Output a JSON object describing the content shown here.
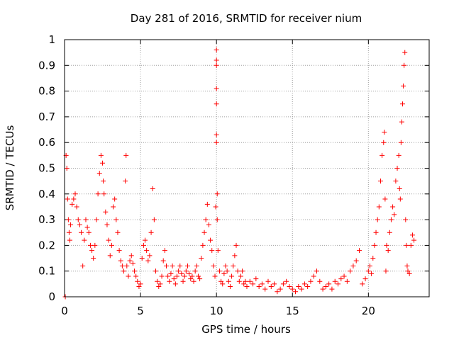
{
  "chart_data": {
    "type": "scatter",
    "title": "Day 281 of 2016, SRMTID for receiver nium",
    "xlabel": "GPS time / hours",
    "ylabel": "SRMTID / TECUs",
    "xlim": [
      0,
      24
    ],
    "ylim": [
      0,
      1
    ],
    "x_ticks": [
      0,
      5,
      10,
      15,
      20
    ],
    "x_tick_labels": [
      "0",
      "5",
      "10",
      "15",
      "20"
    ],
    "y_ticks": [
      0,
      0.1,
      0.2,
      0.3,
      0.4,
      0.5,
      0.6,
      0.7,
      0.8,
      0.9,
      1
    ],
    "y_tick_labels": [
      "0",
      "0.1",
      "0.2",
      "0.3",
      "0.4",
      "0.5",
      "0.6",
      "0.7",
      "0.8",
      "0.9",
      "1"
    ],
    "grid": true,
    "marker": "+",
    "color": "#ff0000",
    "series": [
      {
        "name": "SRMTID",
        "x": [
          0.05,
          0.1,
          0.15,
          0.2,
          0.25,
          0.3,
          0.35,
          0.4,
          0.5,
          0.6,
          0.7,
          0.8,
          0.9,
          1.0,
          1.1,
          1.2,
          1.3,
          1.4,
          1.5,
          1.6,
          1.7,
          1.8,
          1.9,
          2.0,
          2.1,
          2.2,
          2.3,
          2.4,
          2.5,
          2.55,
          2.6,
          2.7,
          2.8,
          2.9,
          3.0,
          3.1,
          3.2,
          3.3,
          3.4,
          3.5,
          3.6,
          3.7,
          3.8,
          3.9,
          4.0,
          4.05,
          4.1,
          4.2,
          4.3,
          4.4,
          4.5,
          4.6,
          4.7,
          4.8,
          4.9,
          5.0,
          5.1,
          5.2,
          5.3,
          5.4,
          5.5,
          5.6,
          5.7,
          5.8,
          5.9,
          6.0,
          6.1,
          6.2,
          6.3,
          6.4,
          6.5,
          6.6,
          6.7,
          6.8,
          6.9,
          7.0,
          7.1,
          7.2,
          7.3,
          7.4,
          7.5,
          7.6,
          7.7,
          7.8,
          7.9,
          8.0,
          8.1,
          8.2,
          8.3,
          8.4,
          8.5,
          8.6,
          8.7,
          8.8,
          8.9,
          9.0,
          9.1,
          9.2,
          9.3,
          9.4,
          9.5,
          9.6,
          9.7,
          9.8,
          9.9,
          9.95,
          10.0,
          10.0,
          10.0,
          10.0,
          10.0,
          10.0,
          10.0,
          10.05,
          10.05,
          10.1,
          10.2,
          10.3,
          10.4,
          10.5,
          10.6,
          10.7,
          10.8,
          10.9,
          11.0,
          11.1,
          11.2,
          11.3,
          11.4,
          11.5,
          11.6,
          11.7,
          11.8,
          11.9,
          12.0,
          12.2,
          12.4,
          12.6,
          12.8,
          13.0,
          13.2,
          13.4,
          13.6,
          13.8,
          14.0,
          14.2,
          14.4,
          14.6,
          14.8,
          15.0,
          15.2,
          15.4,
          15.6,
          15.8,
          16.0,
          16.2,
          16.4,
          16.6,
          16.8,
          17.0,
          17.2,
          17.4,
          17.6,
          17.8,
          18.0,
          18.2,
          18.4,
          18.6,
          18.8,
          19.0,
          19.2,
          19.4,
          19.6,
          19.8,
          20.0,
          20.1,
          20.2,
          20.3,
          20.4,
          20.5,
          20.6,
          20.7,
          20.8,
          20.9,
          21.0,
          21.05,
          21.1,
          21.15,
          21.2,
          21.3,
          21.4,
          21.5,
          21.6,
          21.7,
          21.8,
          21.9,
          22.0,
          22.05,
          22.1,
          22.15,
          22.2,
          22.25,
          22.3,
          22.35,
          22.4,
          22.45,
          22.5,
          22.55,
          22.6,
          22.7,
          22.8,
          22.9,
          23.0
        ],
        "y": [
          0.0,
          0.55,
          0.5,
          0.38,
          0.3,
          0.25,
          0.22,
          0.28,
          0.36,
          0.38,
          0.4,
          0.35,
          0.3,
          0.28,
          0.25,
          0.12,
          0.22,
          0.3,
          0.27,
          0.25,
          0.2,
          0.18,
          0.15,
          0.2,
          0.3,
          0.4,
          0.48,
          0.55,
          0.52,
          0.45,
          0.4,
          0.33,
          0.28,
          0.22,
          0.16,
          0.2,
          0.35,
          0.38,
          0.3,
          0.25,
          0.18,
          0.14,
          0.12,
          0.1,
          0.45,
          0.55,
          0.12,
          0.08,
          0.14,
          0.16,
          0.13,
          0.1,
          0.08,
          0.06,
          0.04,
          0.05,
          0.15,
          0.2,
          0.22,
          0.18,
          0.14,
          0.16,
          0.25,
          0.42,
          0.3,
          0.1,
          0.06,
          0.04,
          0.05,
          0.08,
          0.14,
          0.18,
          0.12,
          0.08,
          0.06,
          0.09,
          0.12,
          0.07,
          0.05,
          0.08,
          0.1,
          0.12,
          0.09,
          0.06,
          0.08,
          0.1,
          0.12,
          0.09,
          0.07,
          0.08,
          0.06,
          0.1,
          0.12,
          0.08,
          0.07,
          0.15,
          0.2,
          0.25,
          0.3,
          0.36,
          0.28,
          0.22,
          0.18,
          0.12,
          0.08,
          0.35,
          0.6,
          0.63,
          0.75,
          0.81,
          0.9,
          0.96,
          0.92,
          0.4,
          0.3,
          0.18,
          0.1,
          0.06,
          0.05,
          0.09,
          0.12,
          0.1,
          0.06,
          0.04,
          0.08,
          0.12,
          0.16,
          0.2,
          0.1,
          0.06,
          0.08,
          0.1,
          0.05,
          0.06,
          0.04,
          0.06,
          0.05,
          0.07,
          0.04,
          0.05,
          0.03,
          0.06,
          0.04,
          0.05,
          0.02,
          0.03,
          0.05,
          0.06,
          0.04,
          0.03,
          0.02,
          0.04,
          0.03,
          0.05,
          0.04,
          0.06,
          0.08,
          0.1,
          0.06,
          0.03,
          0.04,
          0.05,
          0.03,
          0.06,
          0.05,
          0.07,
          0.08,
          0.06,
          0.1,
          0.12,
          0.14,
          0.18,
          0.05,
          0.07,
          0.1,
          0.12,
          0.09,
          0.15,
          0.2,
          0.25,
          0.3,
          0.35,
          0.45,
          0.55,
          0.6,
          0.64,
          0.38,
          0.1,
          0.2,
          0.18,
          0.25,
          0.3,
          0.35,
          0.32,
          0.45,
          0.5,
          0.55,
          0.42,
          0.38,
          0.6,
          0.68,
          0.75,
          0.82,
          0.9,
          0.95,
          0.3,
          0.2,
          0.12,
          0.1,
          0.09,
          0.2,
          0.24,
          0.22
        ]
      }
    ]
  }
}
